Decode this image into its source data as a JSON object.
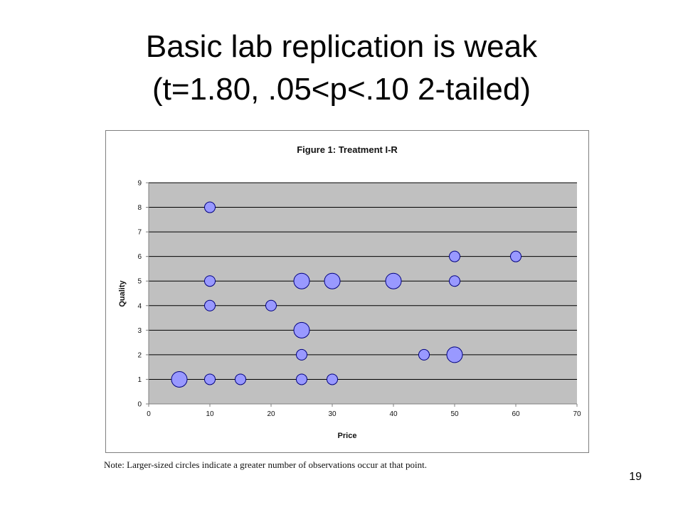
{
  "slide": {
    "title_line1": "Basic lab replication is weak",
    "title_line2": "(t=1.80, .05<p<.10 2-tailed)",
    "note": "Note:  Larger-sized circles indicate a greater number of observations occur at that point.",
    "page_number": "19"
  },
  "chart_data": {
    "type": "scatter",
    "title": "Figure 1: Treatment I-R",
    "xlabel": "Price",
    "ylabel": "Quality",
    "xlim": [
      0,
      70
    ],
    "ylim": [
      0,
      9
    ],
    "x_ticks": [
      0,
      10,
      20,
      30,
      40,
      50,
      60,
      70
    ],
    "y_ticks": [
      0,
      1,
      2,
      3,
      4,
      5,
      6,
      7,
      8,
      9
    ],
    "grid": "horizontal",
    "plot_background": "#c0c0c0",
    "marker_color": "#9999ff",
    "marker_edge_color": "#000080",
    "points": [
      {
        "x": 5,
        "y": 1,
        "size": "large"
      },
      {
        "x": 10,
        "y": 1,
        "size": "small"
      },
      {
        "x": 15,
        "y": 1,
        "size": "small"
      },
      {
        "x": 25,
        "y": 1,
        "size": "small"
      },
      {
        "x": 30,
        "y": 1,
        "size": "small"
      },
      {
        "x": 25,
        "y": 2,
        "size": "small"
      },
      {
        "x": 45,
        "y": 2,
        "size": "small"
      },
      {
        "x": 50,
        "y": 2,
        "size": "large"
      },
      {
        "x": 25,
        "y": 3,
        "size": "large"
      },
      {
        "x": 10,
        "y": 4,
        "size": "small"
      },
      {
        "x": 20,
        "y": 4,
        "size": "small"
      },
      {
        "x": 10,
        "y": 5,
        "size": "small"
      },
      {
        "x": 25,
        "y": 5,
        "size": "large"
      },
      {
        "x": 30,
        "y": 5,
        "size": "large"
      },
      {
        "x": 40,
        "y": 5,
        "size": "large"
      },
      {
        "x": 50,
        "y": 5,
        "size": "small"
      },
      {
        "x": 50,
        "y": 6,
        "size": "small"
      },
      {
        "x": 60,
        "y": 6,
        "size": "small"
      },
      {
        "x": 10,
        "y": 8,
        "size": "small"
      }
    ]
  }
}
